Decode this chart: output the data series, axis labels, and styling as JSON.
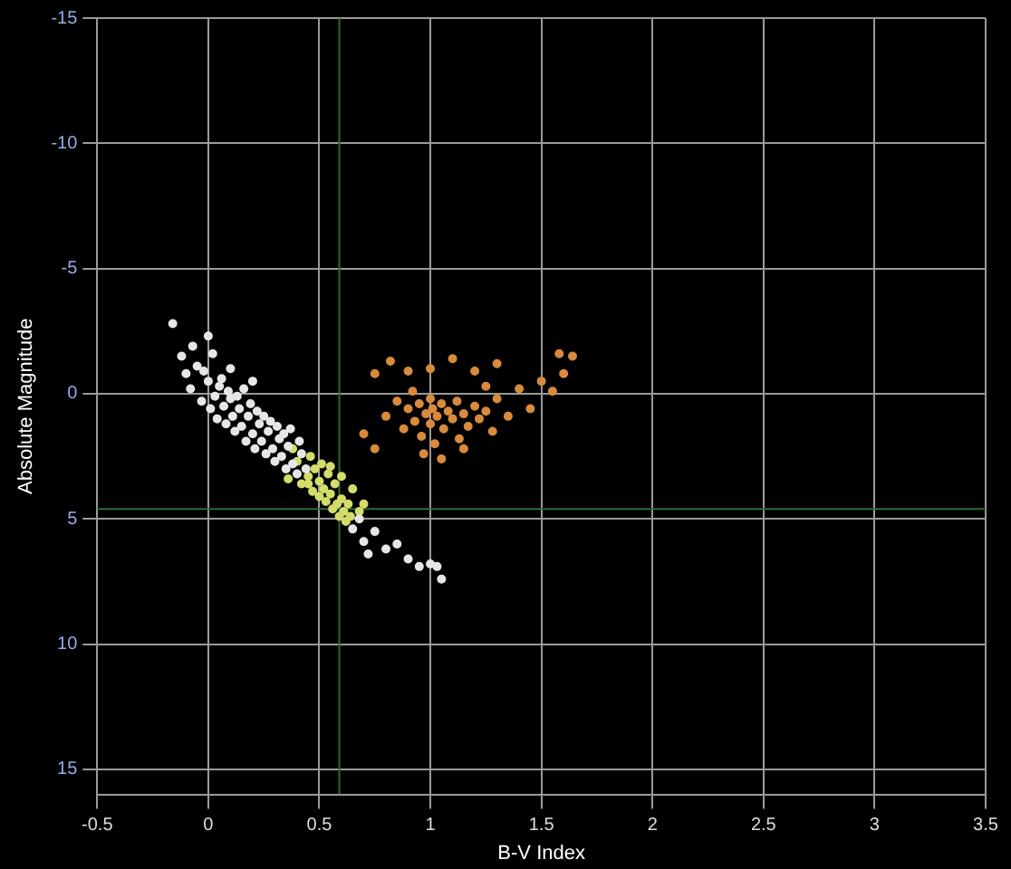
{
  "chart_data": {
    "type": "scatter",
    "xlabel": "B-V Index",
    "ylabel": "Absolute Magnitude",
    "xlim": [
      -0.5,
      3.5
    ],
    "xticks": [
      -0.5,
      0,
      0.5,
      1,
      1.5,
      2,
      2.5,
      3,
      3.5
    ],
    "ylim": [
      16,
      -15
    ],
    "yticks": [
      -15,
      -10,
      -5,
      0,
      5,
      10,
      15
    ],
    "grid": true,
    "legend": false,
    "marker": "circle",
    "ref_lines": [
      {
        "axis": "x",
        "value": 0.59,
        "color": "#2e6b2e"
      },
      {
        "axis": "y",
        "value": 4.6,
        "color": "#2e6b2e"
      }
    ],
    "series": [
      {
        "color": "#e6e6e6",
        "x": [
          -0.16,
          -0.12,
          -0.1,
          -0.08,
          -0.05,
          -0.03,
          0,
          0.01,
          0.03,
          0.04,
          0.05,
          0.07,
          0.08,
          0.1,
          0.11,
          0.12,
          0.14,
          0.15,
          0.17,
          0.18,
          0.2,
          0.21,
          0.23,
          0.24,
          0.26,
          0.27,
          0.29,
          0.3,
          0.32,
          0.33,
          0.35,
          0.36,
          0.38,
          0.4,
          0.42,
          0.44,
          -0.02,
          0.06,
          0.09,
          0.13,
          0.16,
          0.19,
          0.22,
          0.25,
          0.28,
          0.31,
          0.34,
          0.37,
          0.41,
          0.02,
          -0.07,
          0,
          0.1,
          0.2,
          0.65,
          0.7,
          0.75,
          0.8,
          0.85,
          0.9,
          0.72,
          0.68,
          1,
          1.05,
          1.03,
          0.95
        ],
        "values": [
          -2.8,
          -1.5,
          -0.8,
          -0.2,
          -1.1,
          0.3,
          -0.5,
          0.6,
          0.1,
          1,
          -0.3,
          0.5,
          1.2,
          0.2,
          0.9,
          1.5,
          0.6,
          1.3,
          1.9,
          0.9,
          1.6,
          2.2,
          1.2,
          1.9,
          2.4,
          1.5,
          2.2,
          2.7,
          1.8,
          2.5,
          3,
          2.1,
          2.8,
          3.2,
          2.4,
          3,
          -0.9,
          -0.6,
          -0.1,
          0.1,
          -0.2,
          0.4,
          0.7,
          0.9,
          1.1,
          1.3,
          1.6,
          1.4,
          1.9,
          -1.6,
          -1.9,
          -2.3,
          -1,
          -0.5,
          5.4,
          5.9,
          5.5,
          6.2,
          6,
          6.6,
          6.4,
          5,
          6.8,
          7.4,
          6.9,
          6.9
        ]
      },
      {
        "color": "#d4dc6a",
        "x": [
          0.36,
          0.38,
          0.4,
          0.42,
          0.45,
          0.45,
          0.46,
          0.47,
          0.48,
          0.5,
          0.5,
          0.51,
          0.52,
          0.53,
          0.54,
          0.55,
          0.56,
          0.57,
          0.58,
          0.59,
          0.6,
          0.61,
          0.62,
          0.63,
          0.64,
          0.68,
          0.55,
          0.6,
          0.65,
          0.7
        ],
        "values": [
          3.4,
          2.2,
          2.7,
          3.6,
          3.6,
          3.3,
          2.5,
          3.9,
          3,
          3.5,
          4.1,
          2.8,
          3.8,
          4.3,
          3.2,
          4,
          4.6,
          3.6,
          4.4,
          4.9,
          4.2,
          4.7,
          5.1,
          4.4,
          4.9,
          4.7,
          2.9,
          3.3,
          3.8,
          4.4
        ]
      },
      {
        "color": "#d98a3c",
        "x": [
          0.8,
          0.85,
          0.88,
          0.9,
          0.92,
          0.93,
          0.95,
          0.96,
          0.98,
          1,
          1,
          1.01,
          1.02,
          1.03,
          1.05,
          1.06,
          1.08,
          1.1,
          1.12,
          1.13,
          1.15,
          1.17,
          1.2,
          1.22,
          1.25,
          1.28,
          1.3,
          1.35,
          1.4,
          1.45,
          1.5,
          1.55,
          1.6,
          0.75,
          0.82,
          0.9,
          1,
          1.1,
          1.2,
          1.3,
          0.97,
          1.05,
          0.7,
          0.75,
          1.15,
          1.25,
          1.64,
          1.58
        ],
        "values": [
          0.9,
          0.3,
          1.4,
          0.6,
          -0.1,
          1.1,
          0.4,
          1.7,
          0.8,
          0.2,
          1.2,
          0.6,
          2,
          0.9,
          0.4,
          1.4,
          0.7,
          1,
          0.3,
          1.8,
          0.8,
          1.3,
          0.5,
          1,
          0.7,
          1.5,
          0.2,
          0.9,
          -0.2,
          0.6,
          -0.5,
          -0.1,
          -0.8,
          -0.8,
          -1.3,
          -0.9,
          -1,
          -1.4,
          -0.9,
          -1.2,
          2.4,
          2.6,
          1.6,
          2.2,
          2.2,
          -0.3,
          -1.5,
          -1.6
        ]
      }
    ]
  }
}
